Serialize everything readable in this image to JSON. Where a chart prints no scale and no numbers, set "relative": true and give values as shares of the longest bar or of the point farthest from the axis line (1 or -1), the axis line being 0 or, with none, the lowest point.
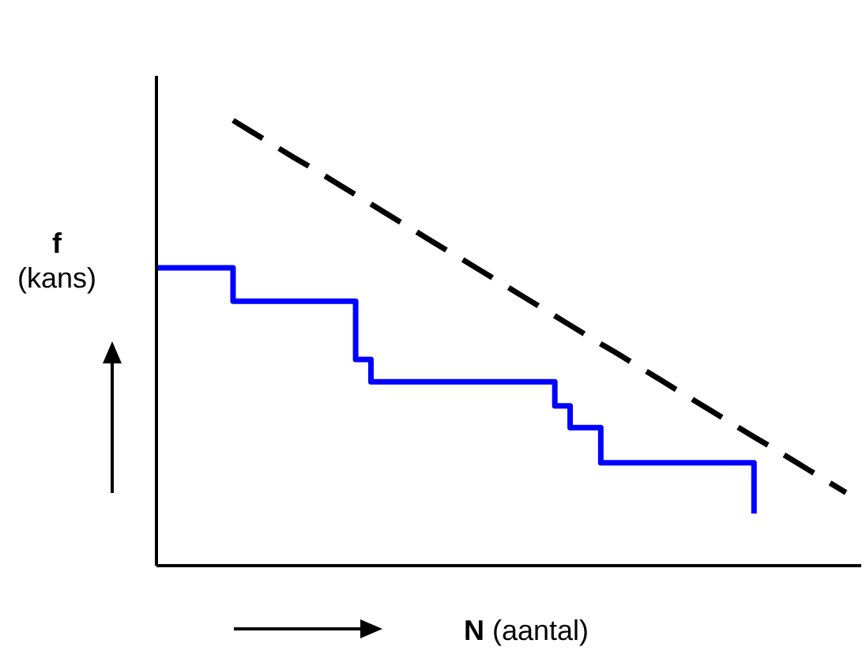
{
  "chart_data": {
    "type": "line",
    "relative": true,
    "xlabel": "N (aantal)",
    "ylabel": "f (kans)",
    "categories": [
      null,
      null,
      null,
      null,
      null,
      null,
      null,
      null,
      null,
      null,
      null,
      null,
      null,
      null,
      null,
      null,
      null,
      null,
      null,
      null,
      null,
      null,
      null,
      null,
      null,
      null,
      null,
      null,
      null,
      null,
      null,
      null,
      null,
      null,
      null,
      null,
      null,
      null,
      null,
      null,
      null,
      null,
      null,
      null,
      null,
      null,
      null
    ],
    "series": [
      {
        "type": "step",
        "color": "#0000ff",
        "values": [
          0.669,
          0.669,
          0.669,
          0.669,
          0.669,
          0.594,
          0.594,
          0.594,
          0.594,
          0.594,
          0.594,
          0.594,
          0.594,
          0.463,
          0.413,
          0.413,
          0.413,
          0.413,
          0.413,
          0.413,
          0.413,
          0.413,
          0.413,
          0.413,
          0.413,
          0.413,
          0.359,
          0.31,
          0.31,
          0.231,
          0.231,
          0.231,
          0.231,
          0.231,
          0.231,
          0.231,
          0.231,
          0.231,
          0.231,
          0.117,
          null,
          null,
          null,
          null,
          null,
          null,
          null
        ]
      },
      {
        "color": "#000000",
        "line_style": "dashed",
        "values": [
          null,
          null,
          null,
          null,
          null,
          1,
          0.979,
          0.958,
          0.937,
          0.916,
          0.896,
          0.875,
          0.854,
          0.833,
          0.812,
          0.791,
          0.77,
          0.749,
          0.728,
          0.707,
          0.687,
          0.666,
          0.645,
          0.624,
          0.603,
          0.582,
          0.561,
          0.54,
          0.519,
          0.498,
          0.478,
          0.457,
          0.436,
          0.415,
          0.394,
          0.373,
          0.352,
          0.331,
          0.31,
          0.289,
          0.269,
          0.248,
          0.227,
          0.206,
          0.185,
          0.164,
          null
        ]
      }
    ]
  }
}
